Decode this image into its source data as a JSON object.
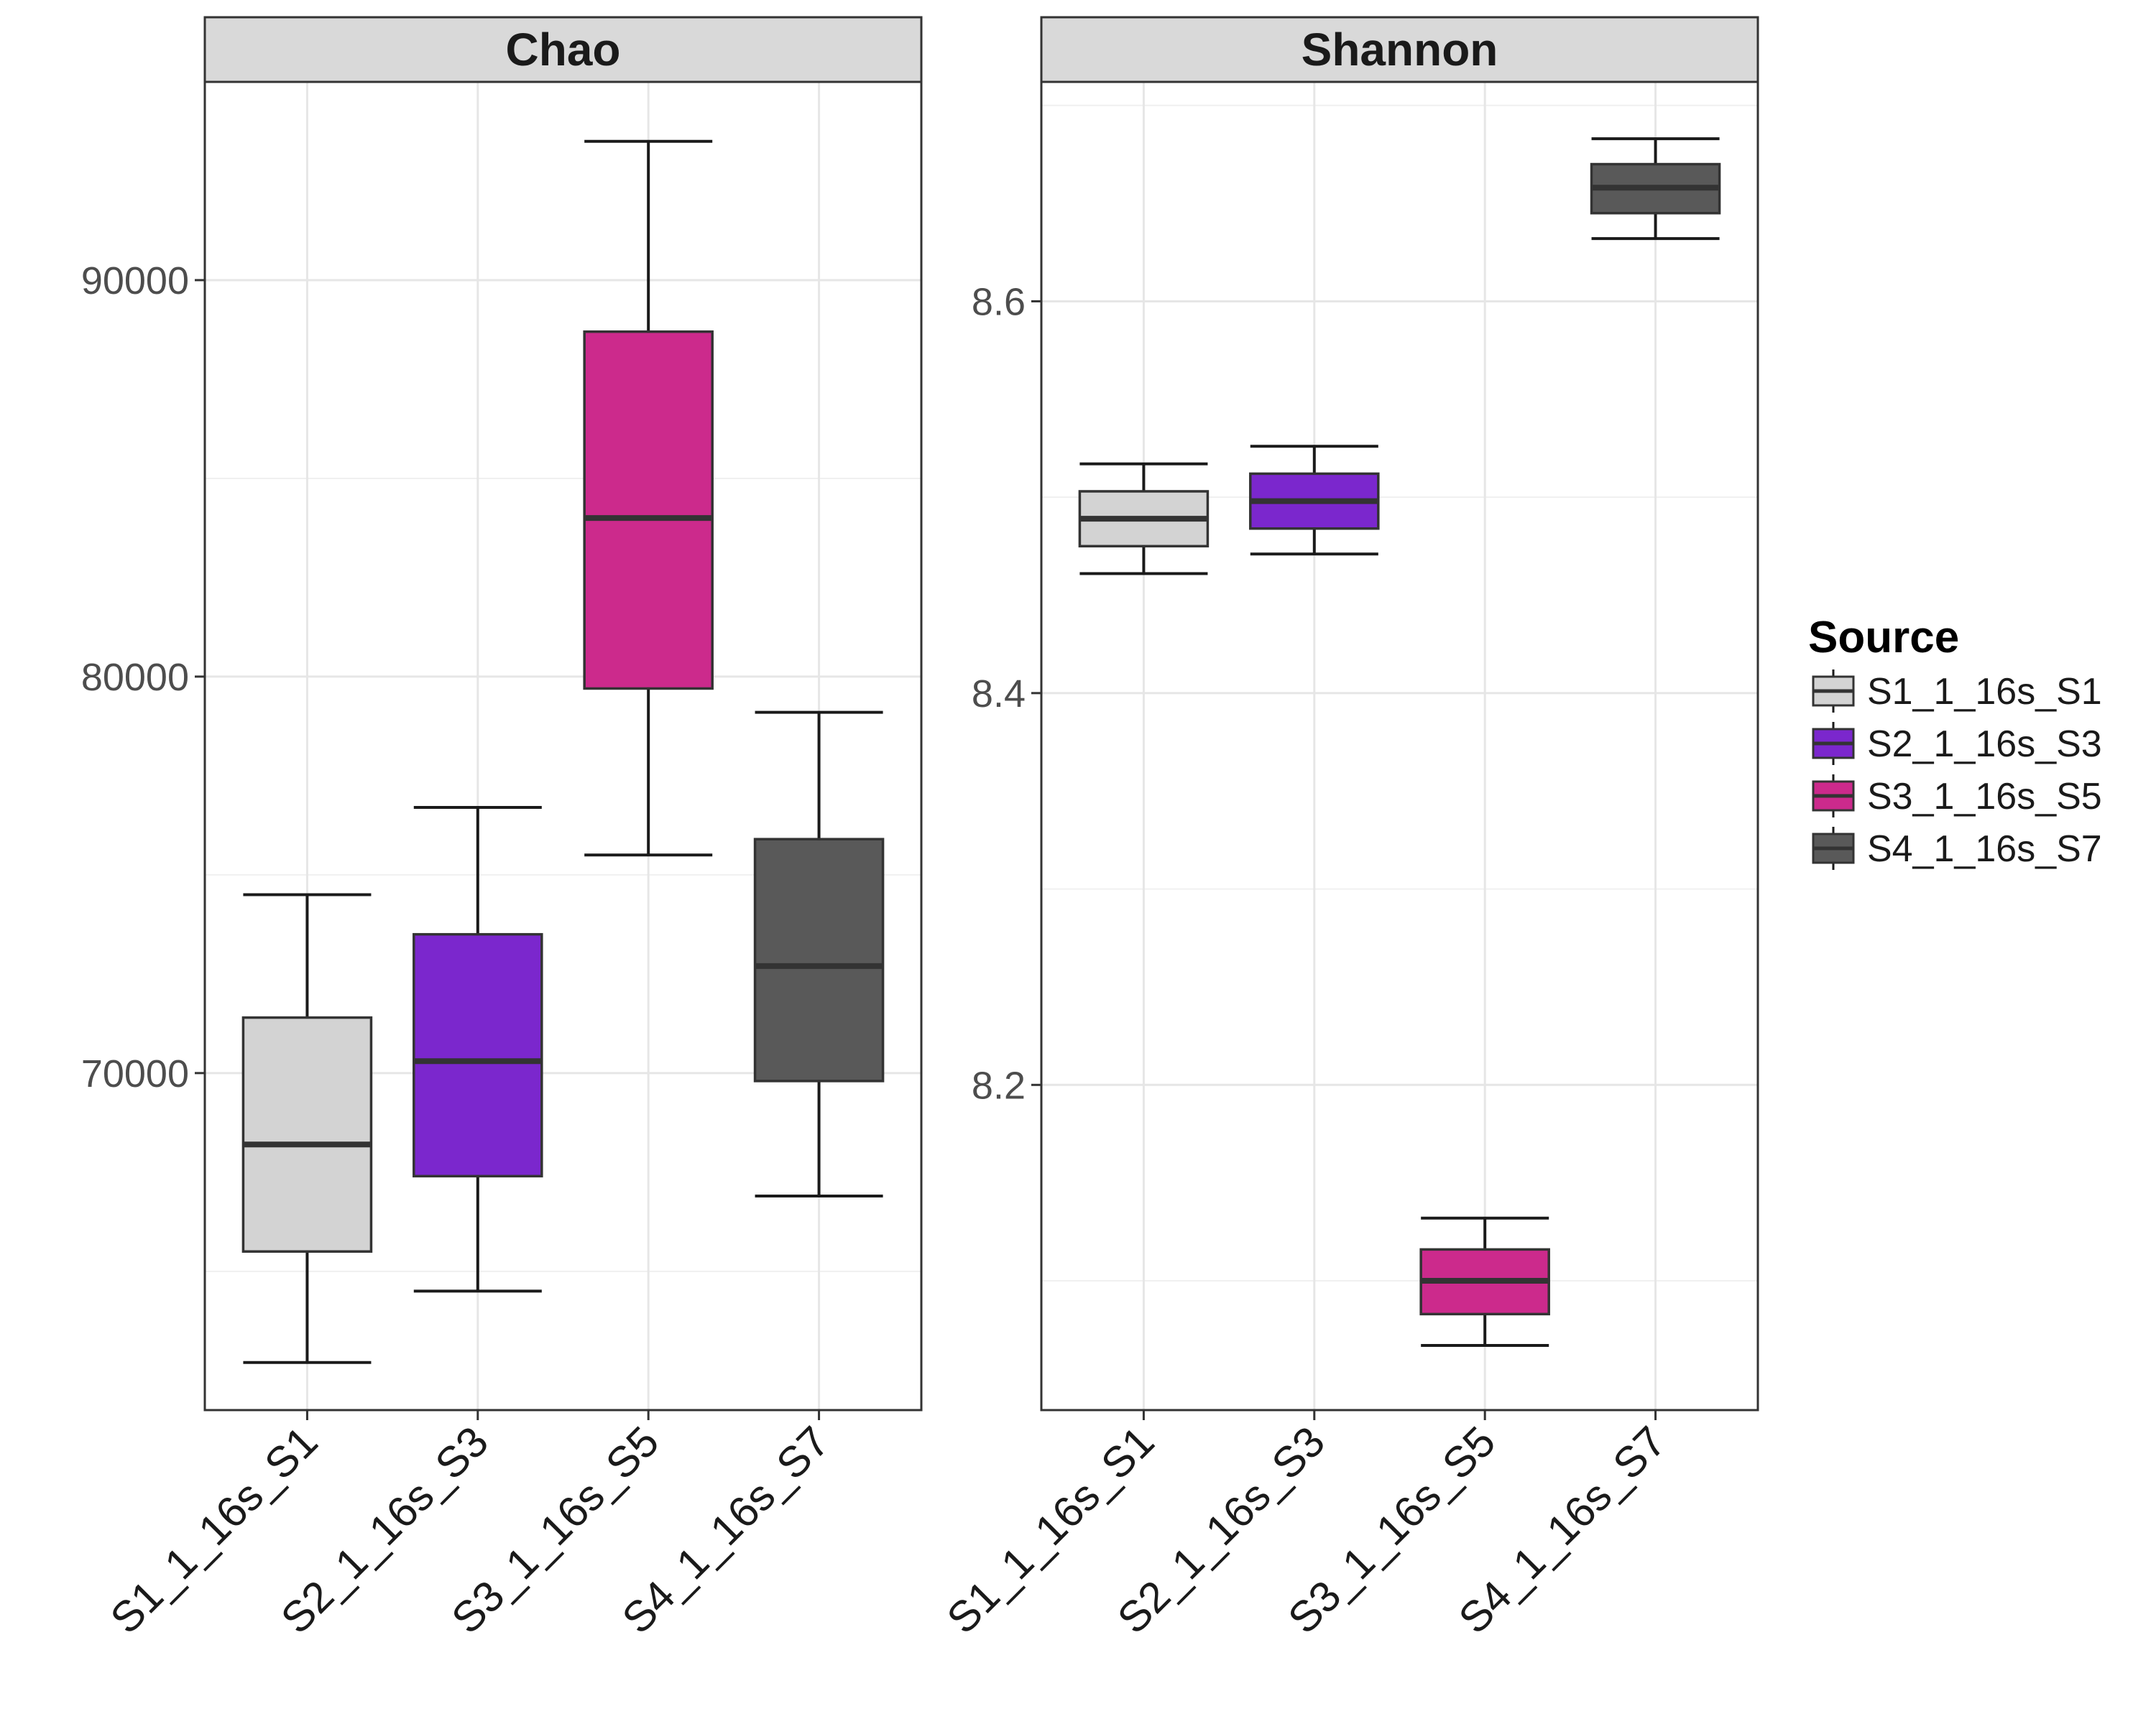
{
  "chart_data": {
    "type": "box",
    "legend": {
      "title": "Source",
      "position": "right",
      "entries": [
        {
          "label": "S1_1_16s_S1",
          "color": "#d3d3d3"
        },
        {
          "label": "S2_1_16s_S3",
          "color": "#7b27cd"
        },
        {
          "label": "S3_1_16s_S5",
          "color": "#cc2a8c"
        },
        {
          "label": "S4_1_16s_S7",
          "color": "#595959"
        }
      ]
    },
    "panels": [
      {
        "title": "Chao",
        "categories": [
          "S1_1_16s_S1",
          "S2_1_16s_S3",
          "S3_1_16s_S5",
          "S4_1_16s_S7"
        ],
        "ylim": [
          61500,
          95000
        ],
        "yticks": [
          70000,
          80000,
          90000
        ],
        "ytick_labels": [
          "70000",
          "80000",
          "90000"
        ],
        "grid": true,
        "boxes": [
          {
            "whisker_low": 62700,
            "q1": 65500,
            "median": 68200,
            "q3": 71400,
            "whisker_high": 74500
          },
          {
            "whisker_low": 64500,
            "q1": 67400,
            "median": 70300,
            "q3": 73500,
            "whisker_high": 76700
          },
          {
            "whisker_low": 75500,
            "q1": 79700,
            "median": 84000,
            "q3": 88700,
            "whisker_high": 93500
          },
          {
            "whisker_low": 66900,
            "q1": 69800,
            "median": 72700,
            "q3": 75900,
            "whisker_high": 79100
          }
        ]
      },
      {
        "title": "Shannon",
        "categories": [
          "S1_1_16s_S1",
          "S2_1_16s_S3",
          "S3_1_16s_S5",
          "S4_1_16s_S7"
        ],
        "ylim": [
          8.034,
          8.712
        ],
        "yticks": [
          8.2,
          8.4,
          8.6
        ],
        "ytick_labels": [
          "8.2",
          "8.4",
          "8.6"
        ],
        "grid": true,
        "boxes": [
          {
            "whisker_low": 8.461,
            "q1": 8.475,
            "median": 8.489,
            "q3": 8.503,
            "whisker_high": 8.517
          },
          {
            "whisker_low": 8.471,
            "q1": 8.484,
            "median": 8.498,
            "q3": 8.512,
            "whisker_high": 8.526
          },
          {
            "whisker_low": 8.067,
            "q1": 8.083,
            "median": 8.1,
            "q3": 8.116,
            "whisker_high": 8.132
          },
          {
            "whisker_low": 8.632,
            "q1": 8.645,
            "median": 8.658,
            "q3": 8.67,
            "whisker_high": 8.683
          }
        ]
      }
    ]
  }
}
